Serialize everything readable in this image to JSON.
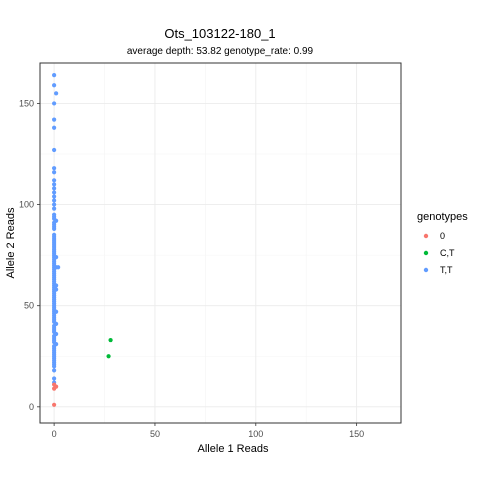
{
  "chart_data": {
    "type": "scatter",
    "title": "Ots_103122-180_1",
    "subtitle": "average depth:  53.82  genotype_rate:  0.99",
    "xlabel": "Allele 1 Reads",
    "ylabel": "Allele 2 Reads",
    "xlim": [
      -7,
      172
    ],
    "ylim": [
      -8,
      170
    ],
    "xticks": [
      0,
      50,
      100,
      150
    ],
    "yticks": [
      0,
      50,
      100,
      150
    ],
    "grid": true,
    "legend": {
      "title": "genotypes",
      "placement": "right",
      "entries": [
        "0",
        "C,T",
        "T,T"
      ]
    },
    "colors": {
      "0": "#F8766D",
      "C,T": "#00BA38",
      "T,T": "#619CFF"
    },
    "series": [
      {
        "name": "0",
        "points": [
          [
            0,
            1
          ],
          [
            0,
            9
          ],
          [
            1,
            10
          ],
          [
            0,
            11
          ]
        ]
      },
      {
        "name": "C,T",
        "points": [
          [
            28,
            33
          ],
          [
            27,
            25
          ]
        ]
      },
      {
        "name": "T,T",
        "points": [
          [
            0,
            164
          ],
          [
            0,
            159
          ],
          [
            1,
            155
          ],
          [
            0,
            150
          ],
          [
            0,
            142
          ],
          [
            0,
            138
          ],
          [
            0,
            127
          ],
          [
            0,
            118
          ],
          [
            0,
            116
          ],
          [
            0,
            112
          ],
          [
            0,
            110
          ],
          [
            0,
            108
          ],
          [
            0,
            106
          ],
          [
            0,
            104
          ],
          [
            0,
            102
          ],
          [
            0,
            100
          ],
          [
            0,
            98
          ],
          [
            0,
            95
          ],
          [
            0,
            94
          ],
          [
            0,
            93
          ],
          [
            1,
            92
          ],
          [
            0,
            91
          ],
          [
            0,
            90
          ],
          [
            0,
            89
          ],
          [
            0,
            88
          ],
          [
            0,
            85
          ],
          [
            0,
            84
          ],
          [
            0,
            83
          ],
          [
            0,
            82
          ],
          [
            0,
            81
          ],
          [
            0,
            80
          ],
          [
            0,
            79
          ],
          [
            0,
            78
          ],
          [
            0,
            77
          ],
          [
            0,
            76
          ],
          [
            0,
            75
          ],
          [
            0,
            74
          ],
          [
            1,
            74
          ],
          [
            0,
            73
          ],
          [
            0,
            72
          ],
          [
            0,
            71
          ],
          [
            0,
            70
          ],
          [
            0,
            69
          ],
          [
            1,
            69
          ],
          [
            2,
            69
          ],
          [
            0,
            68
          ],
          [
            0,
            67
          ],
          [
            0,
            66
          ],
          [
            0,
            65
          ],
          [
            0,
            64
          ],
          [
            0,
            63
          ],
          [
            0,
            62
          ],
          [
            0,
            61
          ],
          [
            0,
            60
          ],
          [
            1,
            60
          ],
          [
            0,
            59
          ],
          [
            1,
            58
          ],
          [
            0,
            58
          ],
          [
            0,
            57
          ],
          [
            0,
            56
          ],
          [
            0,
            55
          ],
          [
            0,
            54
          ],
          [
            0,
            53
          ],
          [
            0,
            52
          ],
          [
            0,
            51
          ],
          [
            0,
            50
          ],
          [
            0,
            49
          ],
          [
            0,
            48
          ],
          [
            0,
            47
          ],
          [
            1,
            47
          ],
          [
            0,
            46
          ],
          [
            0,
            45
          ],
          [
            0,
            44
          ],
          [
            0,
            43
          ],
          [
            0,
            42
          ],
          [
            1,
            41
          ],
          [
            0,
            40
          ],
          [
            0,
            39
          ],
          [
            0,
            38
          ],
          [
            0,
            37
          ],
          [
            1,
            36
          ],
          [
            0,
            35
          ],
          [
            0,
            34
          ],
          [
            0,
            33
          ],
          [
            0,
            32
          ],
          [
            1,
            31
          ],
          [
            0,
            30
          ],
          [
            0,
            29
          ],
          [
            0,
            28
          ],
          [
            0,
            27
          ],
          [
            0,
            26
          ],
          [
            0,
            25
          ],
          [
            0,
            24
          ],
          [
            0,
            23
          ],
          [
            0,
            22
          ],
          [
            0,
            21
          ],
          [
            0,
            20
          ],
          [
            0,
            18
          ],
          [
            0,
            14
          ],
          [
            0,
            12
          ]
        ]
      }
    ]
  }
}
